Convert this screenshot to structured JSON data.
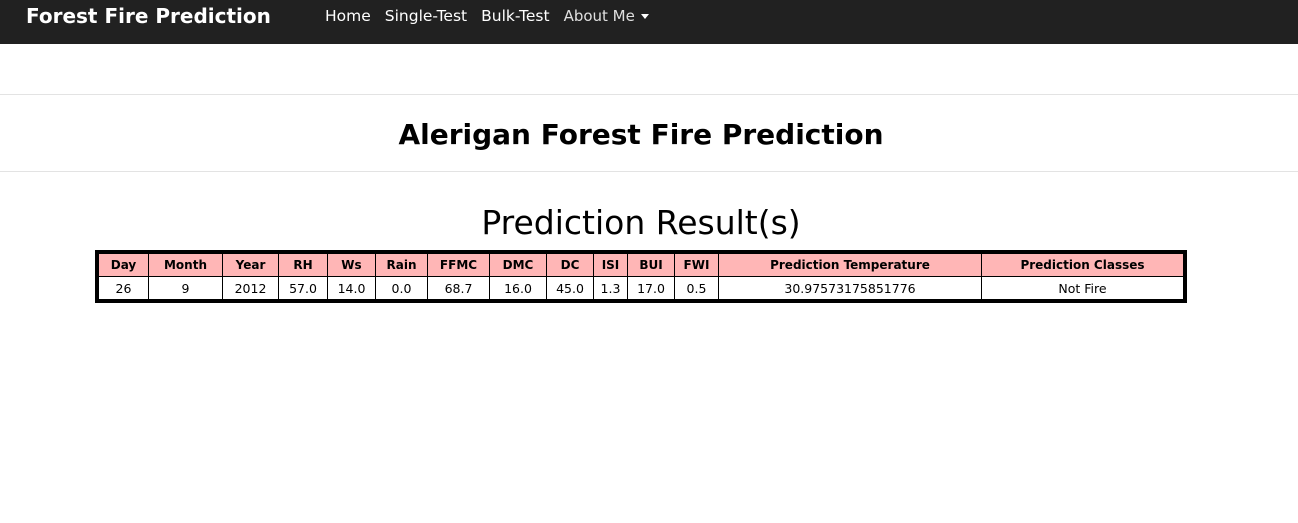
{
  "navbar": {
    "brand": "Forest Fire Prediction",
    "links": [
      "Home",
      "Single-Test",
      "Bulk-Test"
    ],
    "dropdown_label": "About Me"
  },
  "page": {
    "title": "Alerigan Forest Fire Prediction",
    "result_title": "Prediction Result(s)"
  },
  "table": {
    "headers": [
      "Day",
      "Month",
      "Year",
      "RH",
      "Ws",
      "Rain",
      "FFMC",
      "DMC",
      "DC",
      "ISI",
      "BUI",
      "FWI",
      "Prediction Temperature",
      "Prediction Classes"
    ],
    "rows": [
      [
        "26",
        "9",
        "2012",
        "57.0",
        "14.0",
        "0.0",
        "68.7",
        "16.0",
        "45.0",
        "1.3",
        "17.0",
        "0.5",
        "30.97573175851776",
        "Not Fire"
      ]
    ]
  },
  "colors": {
    "navbar_bg": "#212121",
    "header_bg": "#ffb6b6"
  },
  "icons": {
    "dropdown": "caret-down-icon"
  }
}
